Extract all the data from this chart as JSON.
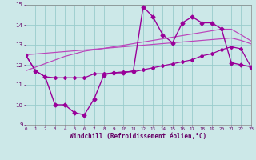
{
  "xlabel": "Windchill (Refroidissement éolien,°C)",
  "hours": [
    0,
    1,
    2,
    3,
    4,
    5,
    6,
    7,
    8,
    9,
    10,
    11,
    12,
    13,
    14,
    15,
    16,
    17,
    18,
    19,
    20,
    21,
    22,
    23
  ],
  "windchill": [
    12.5,
    11.7,
    11.4,
    10.0,
    10.0,
    9.6,
    9.5,
    10.3,
    11.5,
    11.6,
    11.6,
    11.7,
    14.9,
    14.4,
    13.5,
    13.1,
    14.1,
    14.4,
    14.1,
    14.1,
    13.8,
    12.1,
    12.0,
    11.9
  ],
  "temp": [
    12.5,
    11.7,
    11.4,
    11.35,
    11.35,
    11.35,
    11.35,
    11.55,
    11.55,
    11.6,
    11.65,
    11.65,
    11.75,
    11.85,
    11.95,
    12.05,
    12.15,
    12.25,
    12.45,
    12.55,
    12.75,
    12.9,
    12.8,
    11.9
  ],
  "trend1": [
    11.7,
    11.88,
    12.06,
    12.24,
    12.42,
    12.55,
    12.68,
    12.75,
    12.82,
    12.9,
    12.98,
    13.06,
    13.14,
    13.22,
    13.3,
    13.38,
    13.46,
    13.54,
    13.62,
    13.7,
    13.78,
    13.78,
    13.5,
    13.2
  ],
  "trend2": [
    12.5,
    12.54,
    12.58,
    12.62,
    12.66,
    12.7,
    12.74,
    12.78,
    12.82,
    12.86,
    12.9,
    12.94,
    12.98,
    13.02,
    13.06,
    13.1,
    13.14,
    13.18,
    13.22,
    13.26,
    13.3,
    13.34,
    13.22,
    13.05
  ],
  "color_wc": "#990099",
  "color_temp": "#990099",
  "color_tr1": "#bb44bb",
  "color_tr2": "#bb44bb",
  "bg_color": "#cce8e8",
  "grid_color": "#99cccc",
  "ylim": [
    9,
    15
  ],
  "xlim": [
    0,
    23
  ]
}
